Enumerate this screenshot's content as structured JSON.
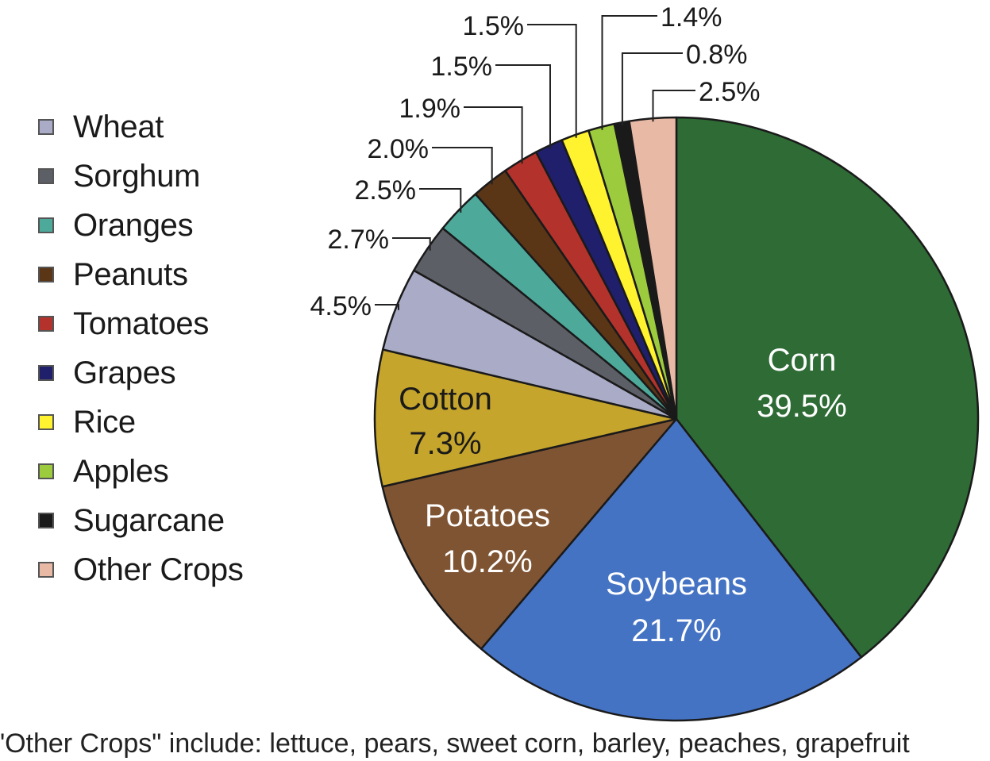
{
  "chart_data": {
    "type": "pie",
    "slices": [
      {
        "name": "Corn",
        "value": 39.5,
        "label": "39.5%",
        "color": "#2e6b35",
        "text_color": "#ffffff"
      },
      {
        "name": "Soybeans",
        "value": 21.7,
        "label": "21.7%",
        "color": "#4573c4",
        "text_color": "#ffffff"
      },
      {
        "name": "Potatoes",
        "value": 10.2,
        "label": "10.2%",
        "color": "#7f5433",
        "text_color": "#ffffff"
      },
      {
        "name": "Cotton",
        "value": 7.3,
        "label": "7.3%",
        "color": "#c6a52c",
        "text_color": "#1a1a1a"
      },
      {
        "name": "Wheat",
        "value": 4.5,
        "label": "4.5%",
        "color": "#a9abc7"
      },
      {
        "name": "Sorghum",
        "value": 2.7,
        "label": "2.7%",
        "color": "#5c5f66"
      },
      {
        "name": "Oranges",
        "value": 2.5,
        "label": "2.5%",
        "color": "#4daa9b"
      },
      {
        "name": "Peanuts",
        "value": 2.0,
        "label": "2.0%",
        "color": "#5a3516"
      },
      {
        "name": "Tomatoes",
        "value": 1.9,
        "label": "1.9%",
        "color": "#b3322c"
      },
      {
        "name": "Grapes",
        "value": 1.5,
        "label": "1.5%",
        "color": "#1f1f6b"
      },
      {
        "name": "Rice",
        "value": 1.5,
        "label": "1.5%",
        "color": "#fff22e"
      },
      {
        "name": "Apples",
        "value": 1.4,
        "label": "1.4%",
        "color": "#9ccb3d"
      },
      {
        "name": "Sugarcane",
        "value": 0.8,
        "label": "0.8%",
        "color": "#1a1a1a"
      },
      {
        "name": "Other Crops",
        "value": 2.5,
        "label": "2.5%",
        "color": "#e8b9a5"
      }
    ],
    "legend": [
      "Wheat",
      "Sorghum",
      "Oranges",
      "Peanuts",
      "Tomatoes",
      "Grapes",
      "Rice",
      "Apples",
      "Sugarcane",
      "Other Crops"
    ],
    "legend_position": "left",
    "start": "top",
    "direction": "clockwise"
  },
  "footnote": "\"Other Crops\" include: lettuce, pears, sweet corn, barley, peaches, grapefruit"
}
